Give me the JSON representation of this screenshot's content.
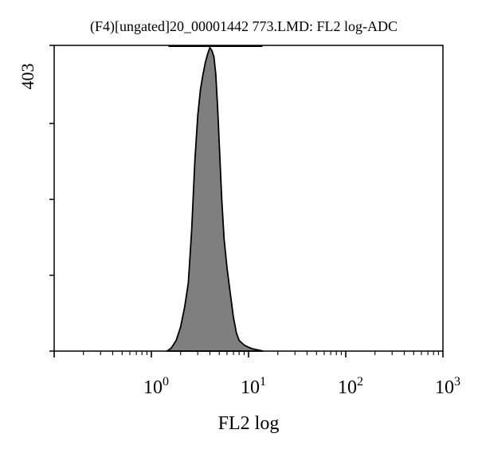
{
  "chart_data": {
    "type": "area",
    "title": "(F4)[ungated]20_00001442 773.LMD: FL2 log-ADC",
    "xlabel": "FL2 log",
    "ylabel": "403",
    "x_scale": "log",
    "xlim": [
      0.1,
      1000
    ],
    "ylim": [
      0,
      403
    ],
    "x_ticks": [
      {
        "base": "10",
        "exp": "0",
        "value": 1
      },
      {
        "base": "10",
        "exp": "1",
        "value": 10
      },
      {
        "base": "10",
        "exp": "2",
        "value": 100
      },
      {
        "base": "10",
        "exp": "3",
        "value": 1000
      }
    ],
    "y_ticks": [
      0,
      100,
      200,
      300,
      403
    ],
    "grid": false,
    "fill_color": "#7f7f7f",
    "outline_color": "#000000",
    "series": [
      {
        "x": [
          1.45,
          1.6,
          1.8,
          2.0,
          2.2,
          2.4,
          2.6,
          2.8,
          3.0,
          3.2,
          3.4,
          3.6,
          3.8,
          4.0,
          4.2,
          4.4,
          4.6,
          4.8,
          5.0,
          5.3,
          5.6,
          6.0,
          6.5,
          7.0,
          7.5,
          8.0,
          9.0,
          10.0,
          11.0,
          12.0,
          13.0,
          14.0
        ],
        "y": [
          0,
          4,
          14,
          32,
          58,
          90,
          160,
          250,
          310,
          345,
          365,
          381,
          392,
          400,
          396,
          388,
          365,
          322,
          272,
          200,
          148,
          110,
          75,
          44,
          24,
          14,
          8,
          5,
          3,
          2,
          1,
          0
        ]
      }
    ]
  }
}
